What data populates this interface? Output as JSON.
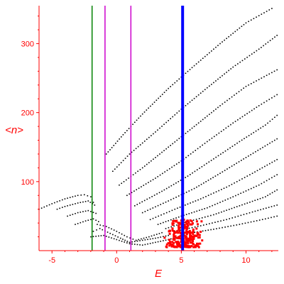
{
  "chart_data": {
    "type": "scatter",
    "xlabel": "E",
    "ylabel": "<n>",
    "xlim": [
      -6,
      12.5
    ],
    "ylim": [
      0,
      355
    ],
    "x_ticks": [
      -5,
      0,
      5,
      10
    ],
    "y_ticks": [
      100,
      200,
      300
    ],
    "x_tick_labels": [
      "-5",
      "0",
      "5",
      "10"
    ],
    "y_tick_labels": [
      "100",
      "200",
      "300"
    ],
    "grid": false,
    "axis_color": "#ff0000",
    "vertical_lines": [
      {
        "x": -1.9,
        "color": "#008000",
        "width": 1.5
      },
      {
        "x": -0.9,
        "color": "#cc00cc",
        "width": 1.5
      },
      {
        "x": 1.1,
        "color": "#cc00cc",
        "width": 1.5
      },
      {
        "x": 5.1,
        "color": "#0000ff",
        "width": 4
      }
    ],
    "series": [
      {
        "color": "#000000",
        "marker": "dot",
        "curves": [
          {
            "x": [
              -0.8,
              0.5,
              2,
              4,
              6,
              8,
              10,
              12.0
            ],
            "y": [
              140,
              168,
              198,
              235,
              268,
              300,
              330,
              351
            ]
          },
          {
            "x": [
              -0.3,
              1,
              3,
              5,
              7,
              9,
              11,
              12.4
            ],
            "y": [
              115,
              140,
              172,
              205,
              236,
              266,
              292,
              312
            ]
          },
          {
            "x": [
              0.2,
              2,
              4,
              6,
              8,
              10,
              12.4
            ],
            "y": [
              95,
              120,
              150,
              180,
              210,
              238,
              262
            ]
          },
          {
            "x": [
              0.8,
              3,
              5,
              7,
              9,
              11,
              12.4
            ],
            "y": [
              80,
              105,
              130,
              158,
              185,
              210,
              226
            ]
          },
          {
            "x": [
              1.4,
              3.5,
              5.5,
              7.5,
              9.5,
              11.5,
              12.4
            ],
            "y": [
              65,
              86,
              108,
              133,
              158,
              182,
              196
            ]
          },
          {
            "x": [
              2,
              4,
              6,
              8,
              10,
              12.4
            ],
            "y": [
              55,
              72,
              90,
              112,
              135,
              162
            ]
          },
          {
            "x": [
              2.6,
              4.5,
              6.5,
              8.5,
              10.5,
              12.4
            ],
            "y": [
              45,
              60,
              75,
              92,
              112,
              132
            ]
          },
          {
            "x": [
              3.2,
              5,
              7,
              9,
              11,
              12.4
            ],
            "y": [
              38,
              50,
              62,
              78,
              95,
              110
            ]
          },
          {
            "x": [
              3.8,
              5.5,
              7.5,
              9.5,
              11.5,
              12.4
            ],
            "y": [
              32,
              42,
              52,
              65,
              78,
              88
            ]
          },
          {
            "x": [
              4.5,
              6.5,
              8.5,
              10.5,
              12.4
            ],
            "y": [
              28,
              36,
              45,
              56,
              66
            ]
          },
          {
            "x": [
              5.2,
              7.5,
              9.5,
              11.5,
              12.4
            ],
            "y": [
              24,
              31,
              38,
              46,
              50
            ]
          },
          {
            "x": [
              -6,
              -5,
              -4,
              -3,
              -2.5,
              -2,
              -1.8
            ],
            "y": [
              60,
              68,
              75,
              80,
              81,
              78,
              70
            ]
          },
          {
            "x": [
              -4.6,
              -4,
              -3,
              -2.2,
              -1.7
            ],
            "y": [
              60,
              64,
              69,
              72,
              66
            ]
          },
          {
            "x": [
              -3.8,
              -3,
              -2.2,
              -1.6
            ],
            "y": [
              50,
              55,
              58,
              54
            ]
          },
          {
            "x": [
              -3.2,
              -2.4,
              -1.8,
              -1.4
            ],
            "y": [
              38,
              43,
              46,
              42
            ]
          },
          {
            "x": [
              -1.8,
              -1.3,
              -0.5,
              0.3,
              1,
              2,
              3,
              4
            ],
            "y": [
              28,
              32,
              25,
              18,
              12,
              15,
              18,
              22
            ]
          },
          {
            "x": [
              -1.5,
              -0.8,
              0,
              0.8,
              1.5,
              2.5,
              3.5
            ],
            "y": [
              38,
              35,
              28,
              20,
              15,
              20,
              26
            ]
          },
          {
            "x": [
              -2,
              -1,
              0,
              1,
              2,
              3,
              4,
              4.8
            ],
            "y": [
              20,
              22,
              16,
              10,
              8,
              12,
              16,
              20
            ]
          }
        ]
      },
      {
        "color": "#ff0000",
        "marker": "square",
        "cluster": {
          "x_range": [
            3.6,
            6.7
          ],
          "y_range": [
            5,
            45
          ],
          "count": 260
        }
      }
    ]
  }
}
